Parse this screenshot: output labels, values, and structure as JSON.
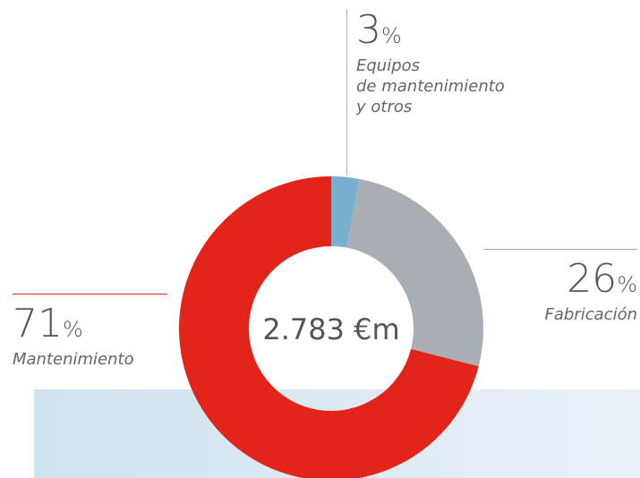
{
  "chart_data": {
    "type": "donut",
    "center_label": "2.783 €m",
    "categories": [
      "Equipos\nde mantenimiento\ny otros",
      "Fabricación",
      "Mantenimiento"
    ],
    "values": [
      3,
      26,
      71
    ],
    "unit": "%",
    "colors": [
      "#7ab0cf",
      "#a9aeb5",
      "#e3241b"
    ]
  }
}
